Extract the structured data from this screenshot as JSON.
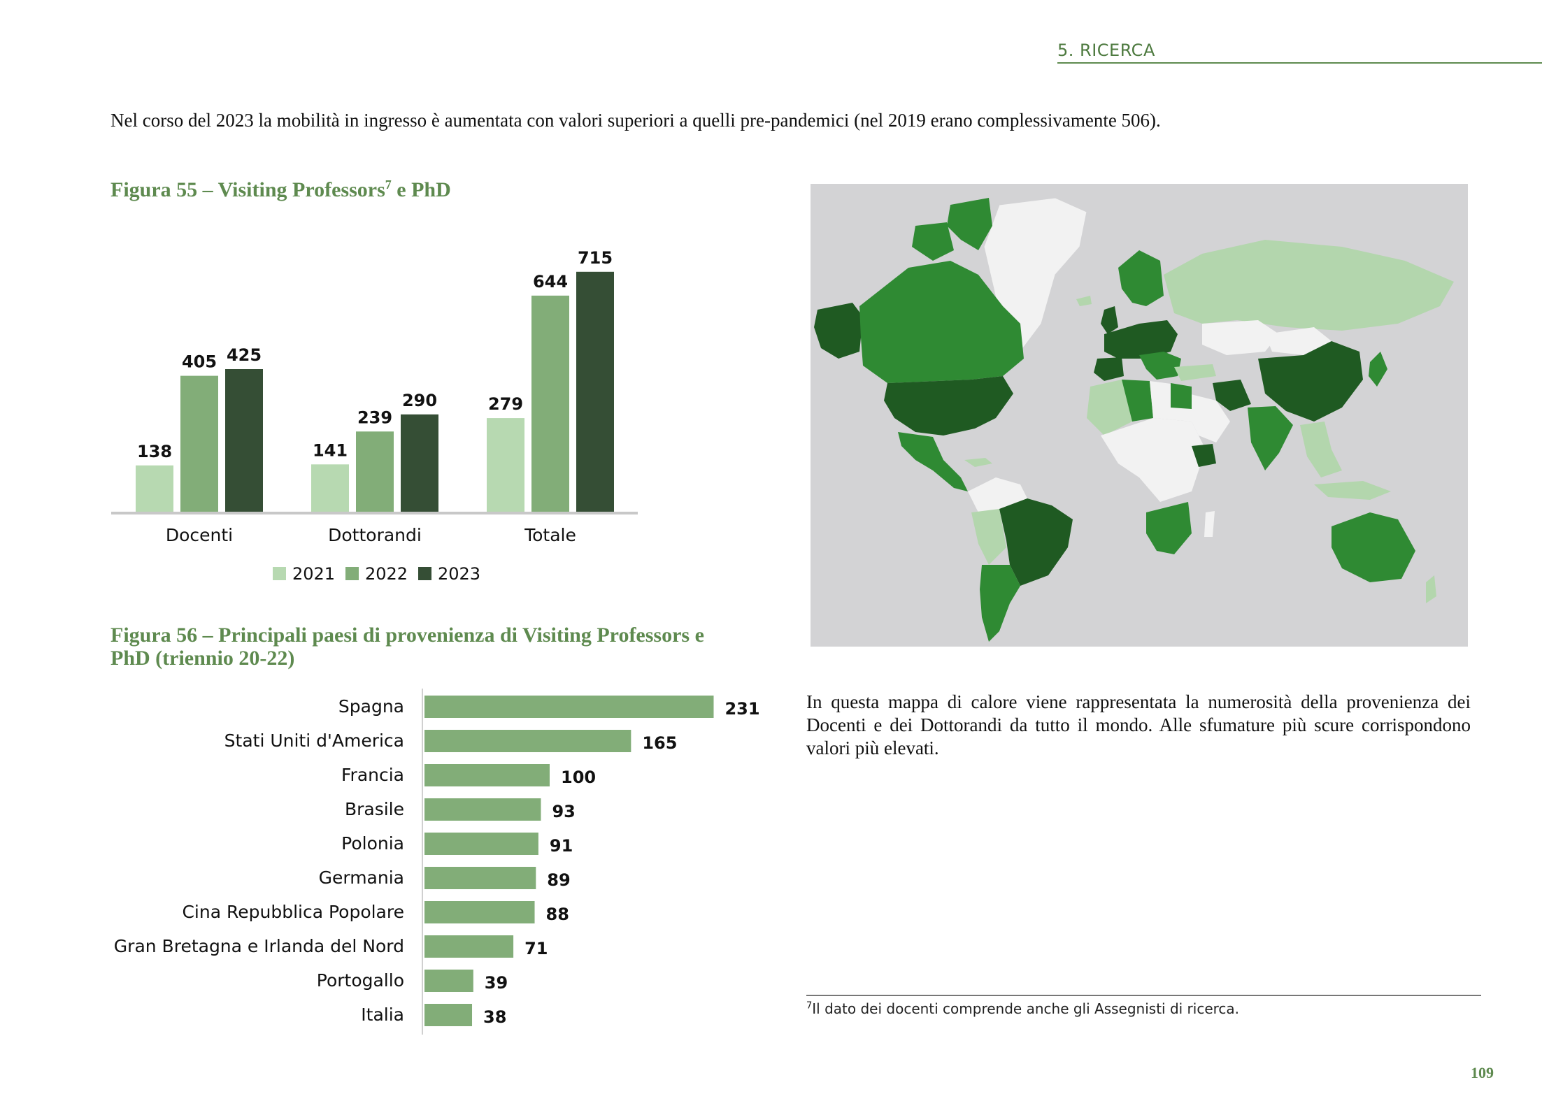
{
  "header": {
    "section": "5. RICERCA"
  },
  "intro_text": "Nel corso del 2023 la mobilità in ingresso è aumentata con valori superiori a quelli pre-pandemici (nel 2019 erano complessivamente 506).",
  "figure55": {
    "title": "Figura 55 – Visiting Professors",
    "footnote_ref": "7",
    "title_end": "e PhD"
  },
  "figure56": {
    "title": "Figura 56 – Principali paesi di provenienza di Visiting Professors e PhD (triennio 20-22)"
  },
  "map": {
    "caption": "In questa mappa di calore viene rappresentata la numerosità della provenienza dei Docenti e dei Dottorandi da tutto il mondo. Alle sfumature più scure corrispon­dono valori più elevati.",
    "colors": {
      "ocean": "#d3d3d5",
      "no_data": "#f2f2f2",
      "low": "#b3d6ad",
      "mid": "#2f8a33",
      "high": "#1f5a22"
    }
  },
  "footnote": {
    "number": "7",
    "text": "Il dato dei docenti comprende anche gli Assegnisti di ricerca."
  },
  "page_number": "109",
  "chart_data": [
    {
      "type": "bar",
      "categories": [
        "Docenti",
        "Dottorandi",
        "Totale"
      ],
      "series": [
        {
          "name": "2021",
          "values": [
            138,
            141,
            279
          ],
          "color": "#b7d9b1"
        },
        {
          "name": "2022",
          "values": [
            405,
            239,
            644
          ],
          "color": "#82ad78"
        },
        {
          "name": "2023",
          "values": [
            425,
            290,
            715
          ],
          "color": "#354e35"
        }
      ],
      "legend": "bottom",
      "grid": false
    },
    {
      "type": "bar",
      "orientation": "horizontal",
      "categories": [
        "Spagna",
        "Stati Uniti d'America",
        "Francia",
        "Brasile",
        "Polonia",
        "Germania",
        "Cina Repubblica Popolare",
        "Gran Bretagna e Irlanda del Nord",
        "Portogallo",
        "Italia"
      ],
      "values": [
        231,
        165,
        100,
        93,
        91,
        89,
        88,
        71,
        39,
        38
      ],
      "color": "#82ad78",
      "grid": false
    }
  ]
}
